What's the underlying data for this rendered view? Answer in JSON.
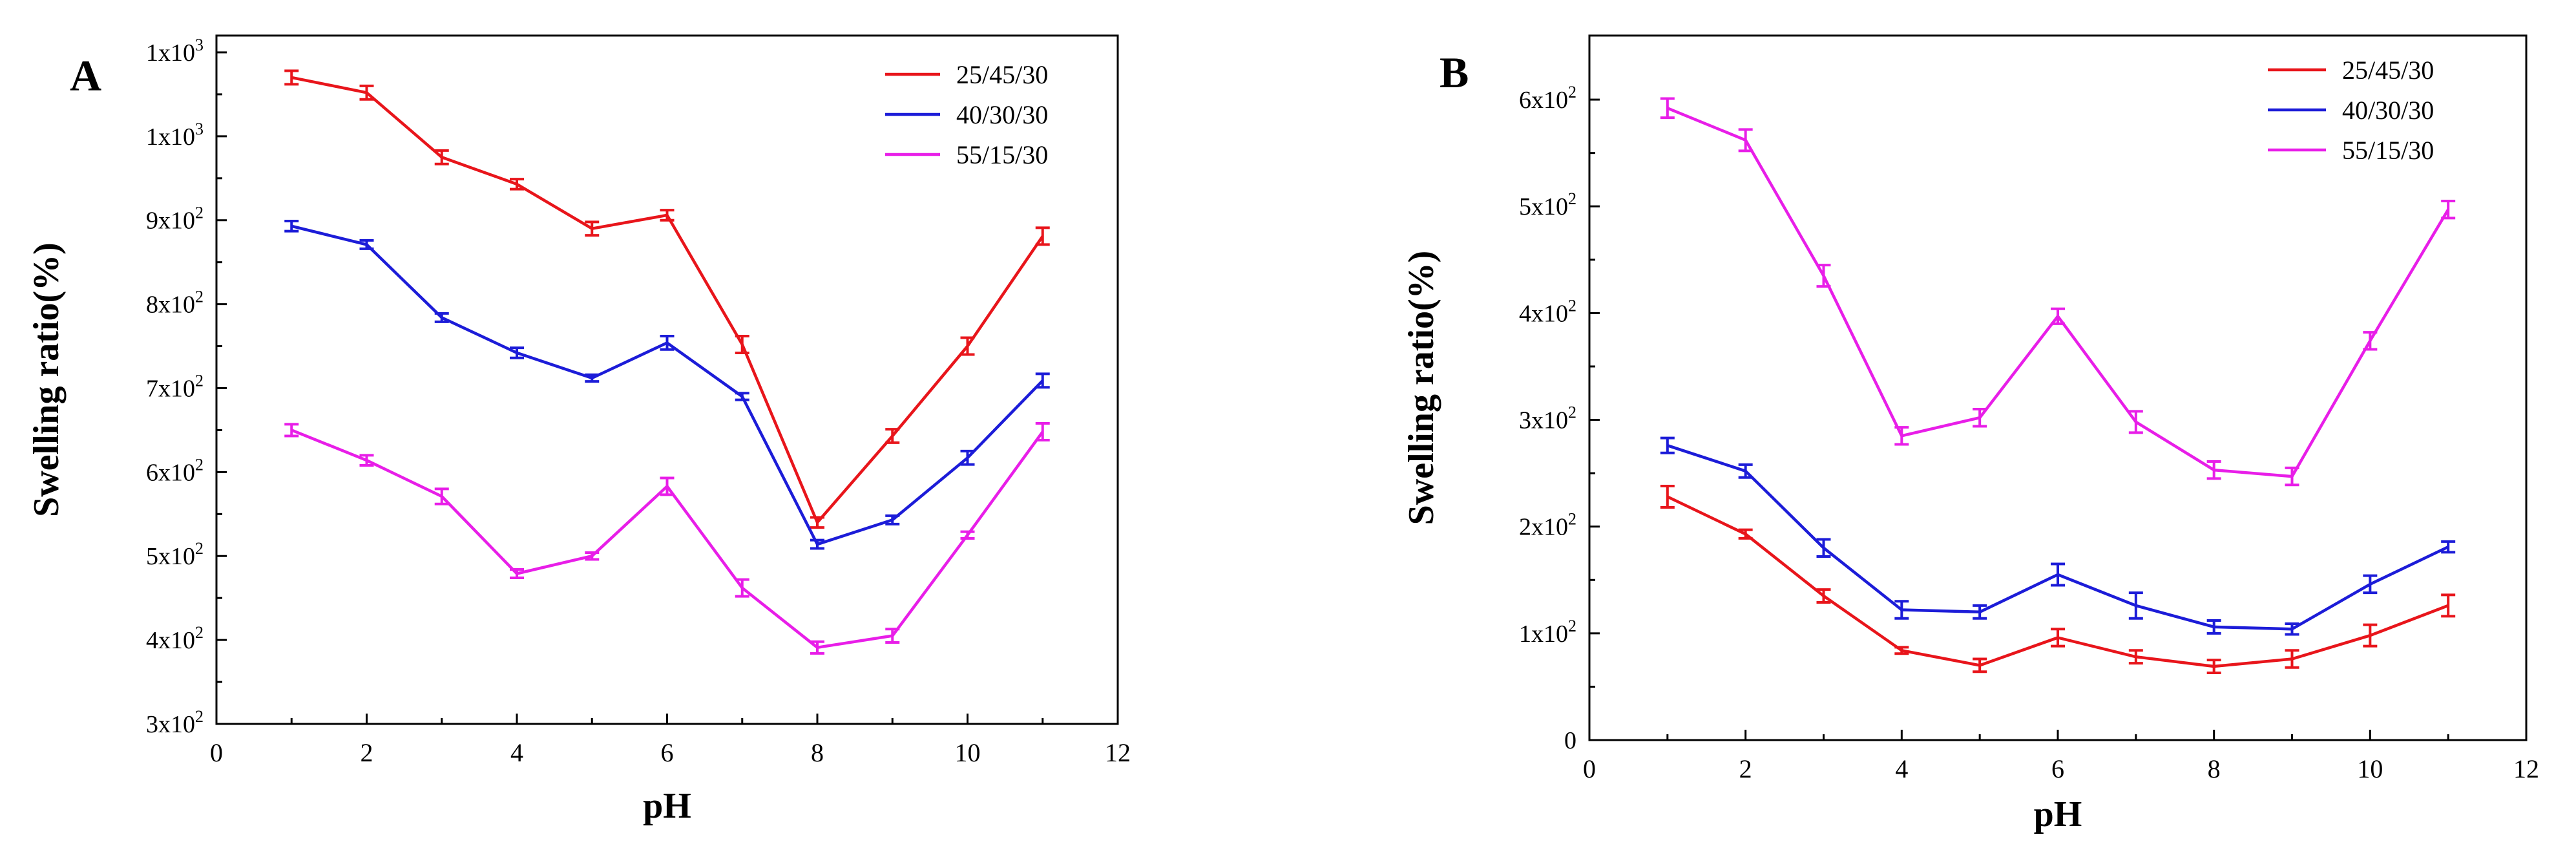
{
  "chart_data": [
    {
      "type": "line",
      "panel_label": "A",
      "xlabel": "pH",
      "ylabel": "Swelling ratio(%)",
      "xlim": [
        0,
        12
      ],
      "ylim": [
        300,
        1120
      ],
      "x_ticks": [
        0,
        2,
        4,
        6,
        8,
        10,
        12
      ],
      "x_tick_labels": [
        "0",
        "2",
        "4",
        "6",
        "8",
        "10",
        "12"
      ],
      "y_ticks": [
        300,
        400,
        500,
        600,
        700,
        800,
        900,
        1000,
        1100
      ],
      "y_tick_labels": [
        {
          "mantissa": "3x10",
          "exp": "2"
        },
        {
          "mantissa": "4x10",
          "exp": "2"
        },
        {
          "mantissa": "5x10",
          "exp": "2"
        },
        {
          "mantissa": "6x10",
          "exp": "2"
        },
        {
          "mantissa": "7x10",
          "exp": "2"
        },
        {
          "mantissa": "8x10",
          "exp": "2"
        },
        {
          "mantissa": "9x10",
          "exp": "2"
        },
        {
          "mantissa": "1x10",
          "exp": "3"
        },
        {
          "mantissa": "1x10",
          "exp": "3"
        }
      ],
      "legend_position": "top-right",
      "x": [
        1,
        2,
        3,
        4,
        5,
        6,
        7,
        8,
        9,
        10,
        11
      ],
      "series": [
        {
          "name": "25/45/30",
          "color": "#e8151b",
          "values": [
            1070,
            1052,
            975,
            943,
            890,
            906,
            752,
            540,
            643,
            750,
            881
          ],
          "errors": [
            8,
            8,
            8,
            6,
            8,
            6,
            10,
            6,
            8,
            10,
            10
          ]
        },
        {
          "name": "40/30/30",
          "color": "#1c1cd8",
          "values": [
            893,
            871,
            784,
            742,
            712,
            754,
            690,
            514,
            543,
            617,
            709
          ],
          "errors": [
            6,
            5,
            5,
            6,
            4,
            8,
            4,
            5,
            5,
            8,
            8
          ]
        },
        {
          "name": "55/15/30",
          "color": "#e81ee8",
          "values": [
            650,
            614,
            571,
            479,
            500,
            583,
            462,
            391,
            405,
            525,
            648
          ],
          "errors": [
            7,
            6,
            9,
            5,
            4,
            10,
            10,
            7,
            8,
            4,
            10
          ]
        }
      ]
    },
    {
      "type": "line",
      "panel_label": "B",
      "xlabel": "pH",
      "ylabel": "Swelling ratio(%)",
      "xlim": [
        0,
        12
      ],
      "ylim": [
        0,
        660
      ],
      "x_ticks": [
        0,
        2,
        4,
        6,
        8,
        10,
        12
      ],
      "x_tick_labels": [
        "0",
        "2",
        "4",
        "6",
        "8",
        "10",
        "12"
      ],
      "y_ticks": [
        0,
        100,
        200,
        300,
        400,
        500,
        600
      ],
      "y_tick_labels": [
        {
          "mantissa": "0",
          "exp": ""
        },
        {
          "mantissa": "1x10",
          "exp": "2"
        },
        {
          "mantissa": "2x10",
          "exp": "2"
        },
        {
          "mantissa": "3x10",
          "exp": "2"
        },
        {
          "mantissa": "4x10",
          "exp": "2"
        },
        {
          "mantissa": "5x10",
          "exp": "2"
        },
        {
          "mantissa": "6x10",
          "exp": "2"
        }
      ],
      "legend_position": "top-right",
      "x": [
        1,
        2,
        3,
        4,
        5,
        6,
        7,
        8,
        9,
        10,
        11
      ],
      "series": [
        {
          "name": "25/45/30",
          "color": "#e8151b",
          "values": [
            228,
            193,
            135,
            84,
            70,
            96,
            78,
            69,
            76,
            98,
            126
          ],
          "errors": [
            10,
            4,
            6,
            3,
            6,
            8,
            6,
            6,
            8,
            10,
            10
          ]
        },
        {
          "name": "40/30/30",
          "color": "#1c1cd8",
          "values": [
            276,
            252,
            180,
            122,
            120,
            155,
            126,
            106,
            104,
            146,
            181
          ],
          "errors": [
            7,
            6,
            8,
            8,
            6,
            10,
            12,
            6,
            5,
            8,
            5
          ]
        },
        {
          "name": "55/15/30",
          "color": "#e81ee8",
          "values": [
            592,
            562,
            435,
            285,
            302,
            397,
            298,
            253,
            247,
            374,
            497
          ],
          "errors": [
            9,
            10,
            10,
            8,
            8,
            7,
            10,
            8,
            8,
            8,
            8
          ]
        }
      ]
    }
  ]
}
